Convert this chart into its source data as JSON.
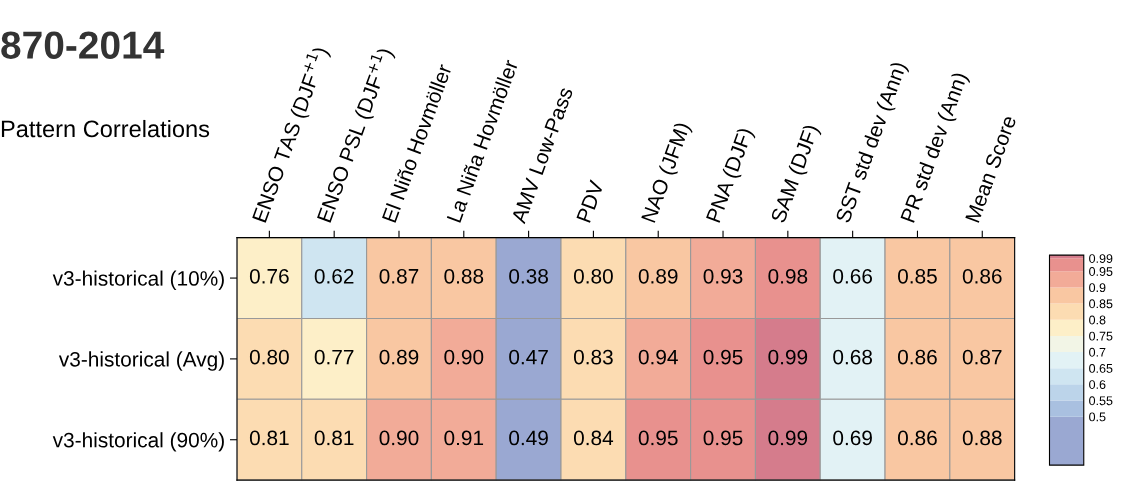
{
  "chart_data": {
    "type": "heatmap",
    "title": "870-2014",
    "subtitle": "Pattern Correlations",
    "categories": [
      "ENSO TAS (DJF$^{+1}$)",
      "ENSO PSL (DJF$^{+1}$)",
      "El Niño Hovmöller",
      "La Niña Hovmöller",
      "AMV Low-Pass",
      "PDV",
      "NAO (JFM)",
      "PNA (DJF)",
      "SAM (DJF)",
      "SST std dev (Ann)",
      "PR std dev (Ann)",
      "Mean Score"
    ],
    "y_categories": [
      "v3-historical (10%)",
      "v3-historical (Avg)",
      "v3-historical (90%)"
    ],
    "cells": [
      [
        0.76,
        0.62,
        0.87,
        0.88,
        0.38,
        0.8,
        0.89,
        0.93,
        0.98,
        0.66,
        0.85,
        0.86
      ],
      [
        0.8,
        0.77,
        0.89,
        0.9,
        0.47,
        0.83,
        0.94,
        0.95,
        0.99,
        0.68,
        0.86,
        0.87
      ],
      [
        0.81,
        0.81,
        0.9,
        0.91,
        0.49,
        0.84,
        0.95,
        0.95,
        0.99,
        0.69,
        0.86,
        0.88
      ]
    ],
    "cell_labels": [
      [
        "0.76",
        "0.62",
        "0.87",
        "0.88",
        "0.38",
        "0.80",
        "0.89",
        "0.93",
        "0.98",
        "0.66",
        "0.85",
        "0.86"
      ],
      [
        "0.80",
        "0.77",
        "0.89",
        "0.90",
        "0.47",
        "0.83",
        "0.94",
        "0.95",
        "0.99",
        "0.68",
        "0.86",
        "0.87"
      ],
      [
        "0.81",
        "0.81",
        "0.90",
        "0.91",
        "0.49",
        "0.84",
        "0.95",
        "0.95",
        "0.99",
        "0.69",
        "0.86",
        "0.88"
      ]
    ],
    "clim": [
      0.35,
      1.0
    ],
    "cticks": [
      0.5,
      0.55,
      0.6,
      0.65,
      0.7,
      0.75,
      0.8,
      0.85,
      0.9,
      0.95,
      0.99
    ],
    "colors": [
      "#9aa8d2",
      "#a9c0e0",
      "#bcd4ea",
      "#cfe5f1",
      "#e2f2f5",
      "#f2f5e6",
      "#fdefc8",
      "#fcdcb2",
      "#f9c7a2",
      "#f2ab98",
      "#e8918e",
      "#d57c8c"
    ]
  }
}
